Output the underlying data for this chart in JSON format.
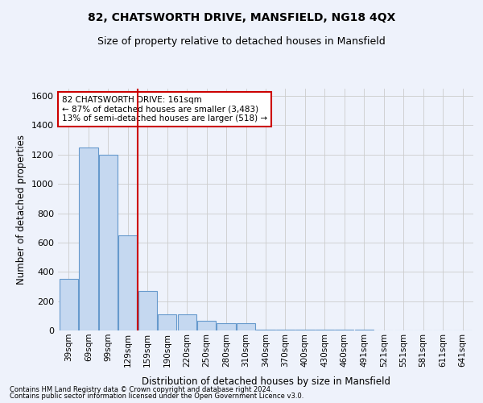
{
  "title": "82, CHATSWORTH DRIVE, MANSFIELD, NG18 4QX",
  "subtitle": "Size of property relative to detached houses in Mansfield",
  "xlabel": "Distribution of detached houses by size in Mansfield",
  "ylabel": "Number of detached properties",
  "footer1": "Contains HM Land Registry data © Crown copyright and database right 2024.",
  "footer2": "Contains public sector information licensed under the Open Government Licence v3.0.",
  "categories": [
    "39sqm",
    "69sqm",
    "99sqm",
    "129sqm",
    "159sqm",
    "190sqm",
    "220sqm",
    "250sqm",
    "280sqm",
    "310sqm",
    "340sqm",
    "370sqm",
    "400sqm",
    "430sqm",
    "460sqm",
    "491sqm",
    "521sqm",
    "551sqm",
    "581sqm",
    "611sqm",
    "641sqm"
  ],
  "values": [
    350,
    1250,
    1200,
    650,
    270,
    110,
    110,
    65,
    50,
    50,
    5,
    5,
    5,
    5,
    5,
    3,
    2,
    2,
    2,
    2,
    2
  ],
  "bar_color": "#c5d8f0",
  "bar_edge_color": "#6699cc",
  "grid_color": "#cccccc",
  "background_color": "#eef2fb",
  "red_line_x": 3.5,
  "red_line_color": "#cc0000",
  "annotation_text": "82 CHATSWORTH DRIVE: 161sqm\n← 87% of detached houses are smaller (3,483)\n13% of semi-detached houses are larger (518) →",
  "annotation_box_color": "#ffffff",
  "annotation_box_edge": "#cc0000",
  "ylim": [
    0,
    1650
  ],
  "yticks": [
    0,
    200,
    400,
    600,
    800,
    1000,
    1200,
    1400,
    1600
  ]
}
